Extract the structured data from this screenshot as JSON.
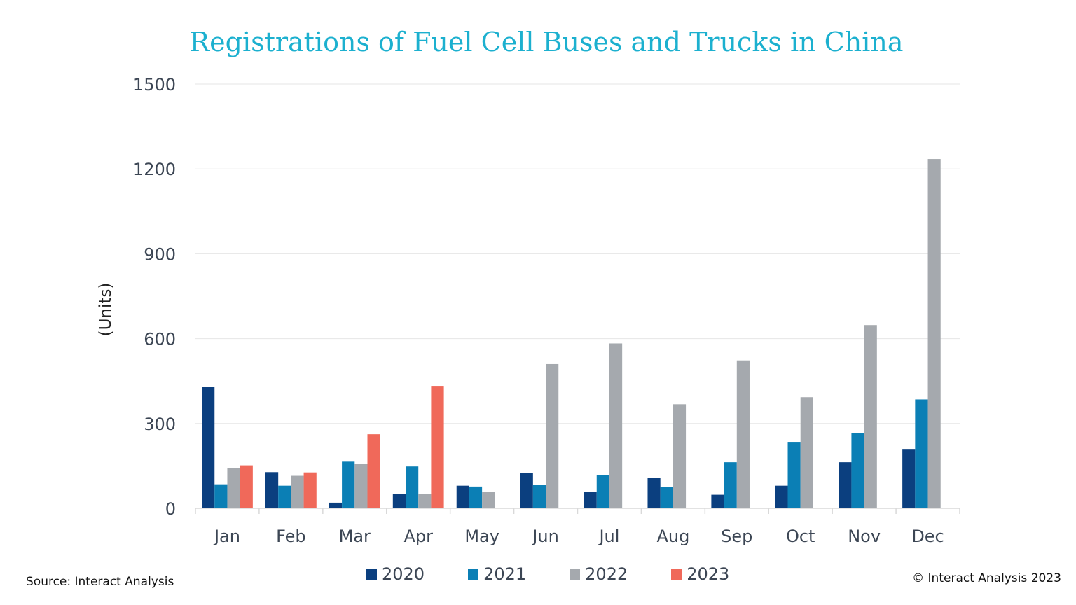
{
  "colors": {
    "title": "#1cb0cf",
    "grid": "#e6e6e6",
    "axis": "#d9d9d9"
  },
  "chart_data": {
    "type": "bar",
    "title": "Registrations of Fuel Cell Buses and Trucks in China",
    "xlabel": "",
    "ylabel": "(Units)",
    "ylim": [
      0,
      1500
    ],
    "yticks": [
      0,
      300,
      600,
      900,
      1200,
      1500
    ],
    "grid": true,
    "legend_position": "bottom",
    "categories": [
      "Jan",
      "Feb",
      "Mar",
      "Apr",
      "May",
      "Jun",
      "Jul",
      "Aug",
      "Sep",
      "Oct",
      "Nov",
      "Dec"
    ],
    "series": [
      {
        "name": "2020",
        "color": "#0b3f7f",
        "values": [
          430,
          128,
          20,
          50,
          80,
          125,
          58,
          108,
          48,
          80,
          163,
          210
        ]
      },
      {
        "name": "2021",
        "color": "#0b7fb5",
        "values": [
          85,
          80,
          165,
          148,
          77,
          83,
          118,
          75,
          163,
          235,
          265,
          385
        ]
      },
      {
        "name": "2022",
        "color": "#a5a9ae",
        "values": [
          142,
          115,
          157,
          50,
          58,
          510,
          583,
          368,
          523,
          393,
          648,
          1235
        ]
      },
      {
        "name": "2023",
        "color": "#f0695a",
        "values": [
          152,
          127,
          262,
          433,
          null,
          null,
          null,
          null,
          null,
          null,
          null,
          null
        ]
      }
    ]
  },
  "footer": {
    "source": "Source: Interact Analysis",
    "copyright": "© Interact Analysis 2023"
  }
}
